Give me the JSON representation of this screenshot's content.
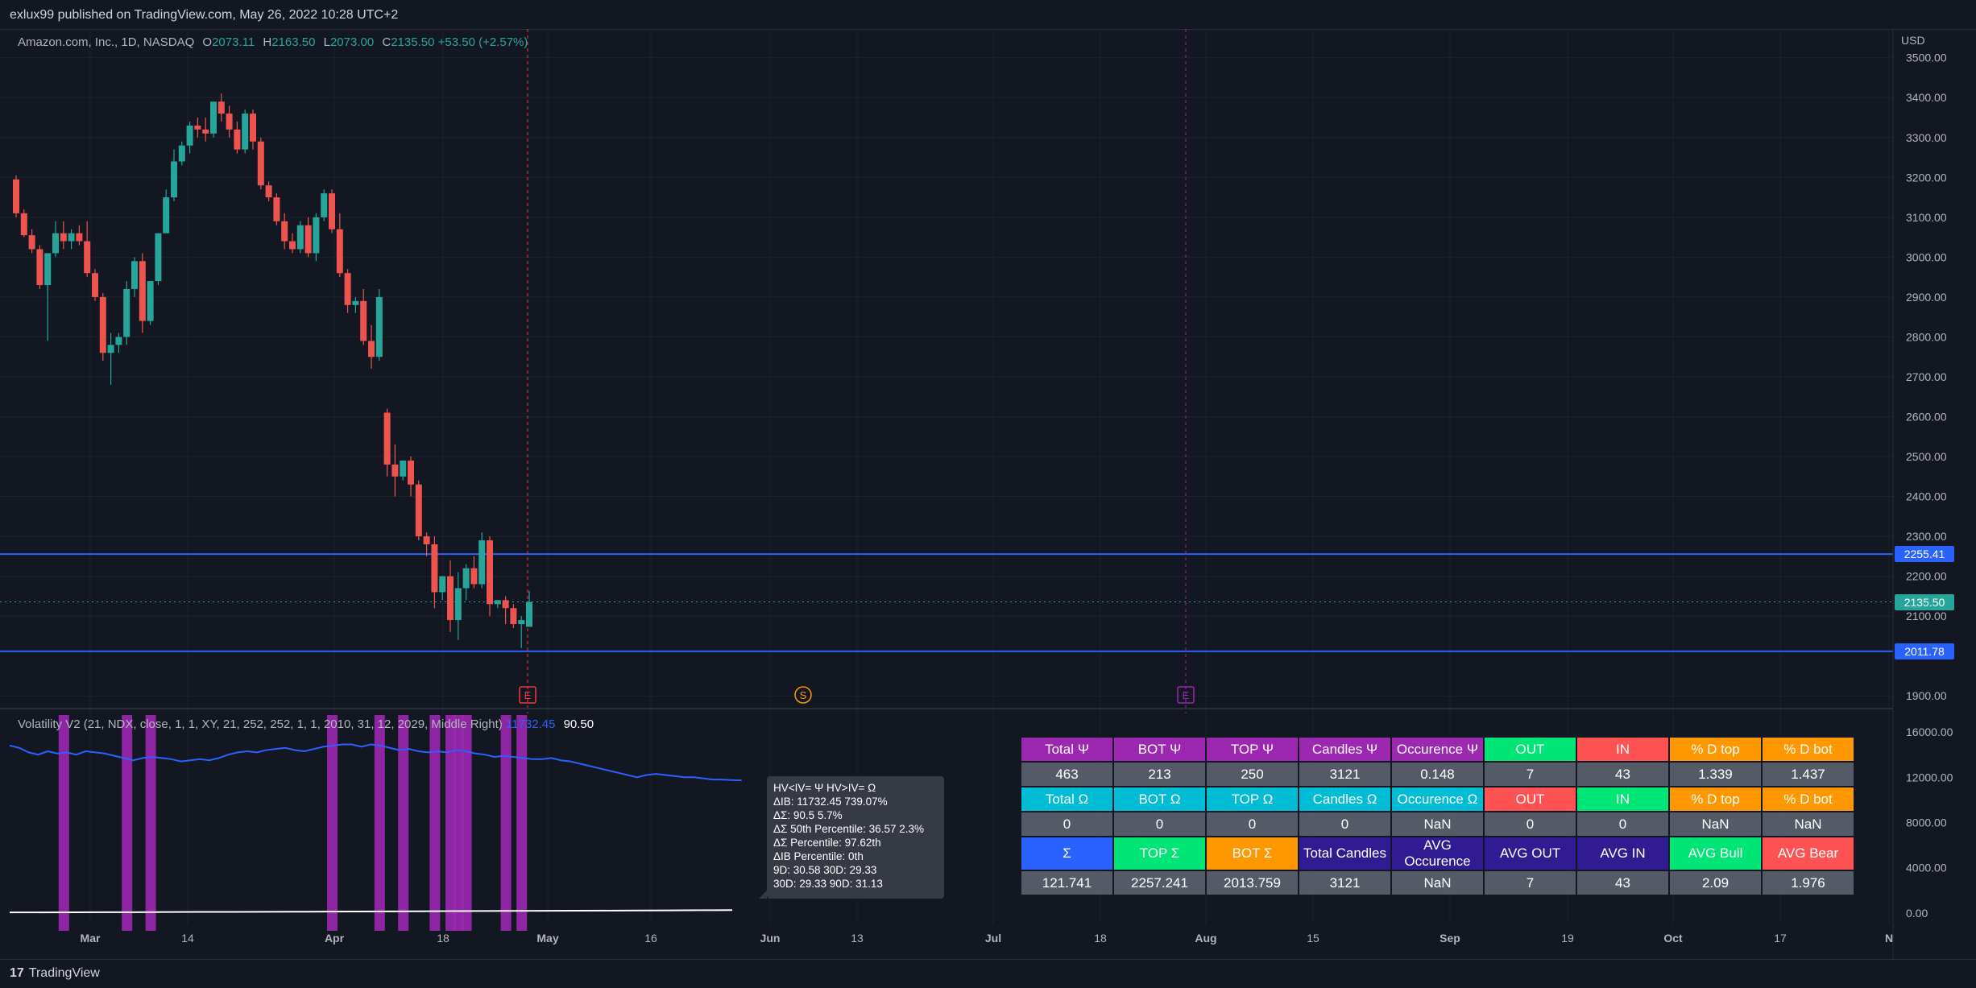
{
  "header": {
    "published": "exlux99 published on TradingView.com, May 26, 2022 10:28 UTC+2"
  },
  "legend": {
    "symbol": "Amazon.com, Inc., 1D, NASDAQ",
    "o_label": "O",
    "o_value": "2073.11",
    "h_label": "H",
    "h_value": "2163.50",
    "l_label": "L",
    "l_value": "2073.00",
    "c_label": "C",
    "c_value": "2135.50",
    "change": "+53.50 (+2.57%)"
  },
  "indicator_legend": {
    "name": "Volatility V2 (21, NDX, close, 1, 1, XY, 21, 252, 252, 1, 1, 2010, 31, 12, 2029, Middle Right)",
    "value1": "11732.45",
    "value2": "90.50"
  },
  "axis": {
    "currency": "USD"
  },
  "price_tags": [
    {
      "label": "2255.41",
      "color": "#2962ff"
    },
    {
      "label": "2135.50",
      "color": "#26a69a"
    },
    {
      "label": "2011.78",
      "color": "#2962ff"
    }
  ],
  "event_markers": [
    {
      "label": "E",
      "color": "#f23645"
    },
    {
      "label": "S",
      "color": "#ff9800"
    },
    {
      "label": "E",
      "color": "#9c27b0"
    }
  ],
  "tooltip": {
    "lines": [
      "HV<IV= Ψ  HV>IV= Ω",
      "ΔIB: 11732.45  739.07%",
      "ΔΣ: 90.5  5.7%",
      "ΔΣ 50th Percentile: 36.57  2.3%",
      "ΔΣ Percentile: 97.62th",
      "ΔIB Percentile: 0th",
      "9D: 30.58  30D: 29.33",
      "30D: 29.33  90D: 31.13"
    ]
  },
  "stats_table": {
    "rows": [
      {
        "type": "header",
        "cells": [
          {
            "t": "Total Ψ",
            "bg": "#9c27b0"
          },
          {
            "t": "BOT Ψ",
            "bg": "#9c27b0"
          },
          {
            "t": "TOP Ψ",
            "bg": "#9c27b0"
          },
          {
            "t": "Candles Ψ",
            "bg": "#9c27b0"
          },
          {
            "t": "Occurence Ψ",
            "bg": "#9c27b0"
          },
          {
            "t": "OUT",
            "bg": "#00e676"
          },
          {
            "t": "IN",
            "bg": "#ff5252"
          },
          {
            "t": "% D top",
            "bg": "#ff9800"
          },
          {
            "t": "% D bot",
            "bg": "#ff9800"
          }
        ]
      },
      {
        "type": "data",
        "cells": [
          {
            "t": "463"
          },
          {
            "t": "213"
          },
          {
            "t": "250"
          },
          {
            "t": "3121"
          },
          {
            "t": "0.148"
          },
          {
            "t": "7"
          },
          {
            "t": "43"
          },
          {
            "t": "1.339"
          },
          {
            "t": "1.437"
          }
        ]
      },
      {
        "type": "header",
        "cells": [
          {
            "t": "Total Ω",
            "bg": "#00bcd4"
          },
          {
            "t": "BOT Ω",
            "bg": "#00bcd4"
          },
          {
            "t": "TOP Ω",
            "bg": "#00bcd4"
          },
          {
            "t": "Candles Ω",
            "bg": "#00bcd4"
          },
          {
            "t": "Occurence Ω",
            "bg": "#00bcd4"
          },
          {
            "t": "OUT",
            "bg": "#ff5252"
          },
          {
            "t": "IN",
            "bg": "#00e676"
          },
          {
            "t": "% D top",
            "bg": "#ff9800"
          },
          {
            "t": "% D bot",
            "bg": "#ff9800"
          }
        ]
      },
      {
        "type": "data",
        "cells": [
          {
            "t": "0"
          },
          {
            "t": "0"
          },
          {
            "t": "0"
          },
          {
            "t": "0"
          },
          {
            "t": "NaN"
          },
          {
            "t": "0"
          },
          {
            "t": "0"
          },
          {
            "t": "NaN"
          },
          {
            "t": "NaN"
          }
        ]
      },
      {
        "type": "header",
        "cells": [
          {
            "t": "Σ",
            "bg": "#2962ff"
          },
          {
            "t": "TOP Σ",
            "bg": "#00e676"
          },
          {
            "t": "BOT Σ",
            "bg": "#ff9800"
          },
          {
            "t": "Total Candles",
            "bg": "#311b92"
          },
          {
            "t": "AVG Occurence",
            "bg": "#311b92"
          },
          {
            "t": "AVG OUT",
            "bg": "#311b92"
          },
          {
            "t": "AVG IN",
            "bg": "#311b92"
          },
          {
            "t": "AVG Bull",
            "bg": "#00e676"
          },
          {
            "t": "AVG Bear",
            "bg": "#ff5252"
          }
        ]
      },
      {
        "type": "data",
        "cells": [
          {
            "t": "121.741"
          },
          {
            "t": "2257.241"
          },
          {
            "t": "2013.759"
          },
          {
            "t": "3121"
          },
          {
            "t": "NaN"
          },
          {
            "t": "7"
          },
          {
            "t": "43"
          },
          {
            "t": "2.09"
          },
          {
            "t": "1.976"
          }
        ]
      }
    ]
  },
  "chart_data": {
    "type": "candlestick",
    "price_axis": {
      "ticks": [
        1900,
        2100,
        2200,
        2300,
        2400,
        2500,
        2600,
        2700,
        2800,
        2900,
        3000,
        3100,
        3200,
        3300,
        3400,
        3500
      ],
      "ylim": [
        1860,
        3560
      ]
    },
    "indicator_axis": {
      "ticks": [
        "0.00",
        "4000.00",
        "8000.00",
        "12000.00",
        "16000.00"
      ],
      "ylim": [
        -1000,
        17500
      ]
    },
    "x_labels": [
      "Mar",
      "14",
      "Apr",
      "18",
      "May",
      "16",
      "Jun",
      "13",
      "Jul",
      "18",
      "Aug",
      "15",
      "Sep",
      "19",
      "Oct",
      "17",
      "N"
    ],
    "candles": [
      [
        3195,
        3205,
        3100,
        3110
      ],
      [
        3110,
        3120,
        3050,
        3055
      ],
      [
        3055,
        3070,
        3010,
        3020
      ],
      [
        3020,
        3030,
        2920,
        2930
      ],
      [
        2930,
        3010,
        2790,
        3010
      ],
      [
        3010,
        3090,
        3000,
        3060
      ],
      [
        3060,
        3090,
        3020,
        3040
      ],
      [
        3040,
        3070,
        3020,
        3060
      ],
      [
        3060,
        3080,
        3030,
        3040
      ],
      [
        3040,
        3090,
        2950,
        2960
      ],
      [
        2960,
        2970,
        2890,
        2900
      ],
      [
        2900,
        2910,
        2740,
        2760
      ],
      [
        2760,
        2810,
        2680,
        2780
      ],
      [
        2780,
        2810,
        2760,
        2800
      ],
      [
        2800,
        2940,
        2780,
        2920
      ],
      [
        2920,
        3000,
        2900,
        2990
      ],
      [
        2990,
        3010,
        2810,
        2840
      ],
      [
        2840,
        2940,
        2830,
        2940
      ],
      [
        2940,
        3060,
        2930,
        3060
      ],
      [
        3060,
        3170,
        3060,
        3150
      ],
      [
        3150,
        3270,
        3140,
        3240
      ],
      [
        3240,
        3290,
        3230,
        3280
      ],
      [
        3280,
        3340,
        3260,
        3330
      ],
      [
        3330,
        3350,
        3300,
        3320
      ],
      [
        3320,
        3350,
        3290,
        3310
      ],
      [
        3310,
        3390,
        3300,
        3390
      ],
      [
        3390,
        3410,
        3340,
        3360
      ],
      [
        3360,
        3380,
        3300,
        3320
      ],
      [
        3320,
        3340,
        3260,
        3270
      ],
      [
        3270,
        3370,
        3260,
        3360
      ],
      [
        3360,
        3370,
        3270,
        3290
      ],
      [
        3290,
        3300,
        3170,
        3180
      ],
      [
        3180,
        3190,
        3140,
        3150
      ],
      [
        3150,
        3160,
        3080,
        3090
      ],
      [
        3090,
        3110,
        3020,
        3040
      ],
      [
        3040,
        3060,
        3010,
        3020
      ],
      [
        3020,
        3090,
        3010,
        3080
      ],
      [
        3080,
        3100,
        3000,
        3010
      ],
      [
        3010,
        3110,
        2990,
        3100
      ],
      [
        3100,
        3170,
        3090,
        3160
      ],
      [
        3160,
        3170,
        3060,
        3070
      ],
      [
        3070,
        3110,
        2950,
        2960
      ],
      [
        2960,
        2970,
        2860,
        2880
      ],
      [
        2880,
        2900,
        2860,
        2890
      ],
      [
        2890,
        2920,
        2780,
        2790
      ],
      [
        2790,
        2830,
        2720,
        2750
      ],
      [
        2750,
        2920,
        2740,
        2900
      ],
      [
        2610,
        2620,
        2450,
        2480
      ],
      [
        2480,
        2530,
        2400,
        2450
      ],
      [
        2450,
        2490,
        2440,
        2490
      ],
      [
        2490,
        2500,
        2400,
        2430
      ],
      [
        2430,
        2440,
        2290,
        2300
      ],
      [
        2300,
        2310,
        2250,
        2280
      ],
      [
        2280,
        2300,
        2120,
        2160
      ],
      [
        2160,
        2200,
        2140,
        2200
      ],
      [
        2200,
        2240,
        2060,
        2090
      ],
      [
        2090,
        2210,
        2040,
        2170
      ],
      [
        2170,
        2230,
        2140,
        2220
      ],
      [
        2220,
        2250,
        2170,
        2180
      ],
      [
        2180,
        2310,
        2170,
        2290
      ],
      [
        2290,
        2300,
        2100,
        2130
      ],
      [
        2130,
        2140,
        2120,
        2140
      ],
      [
        2140,
        2150,
        2080,
        2120
      ],
      [
        2120,
        2130,
        2070,
        2080
      ],
      [
        2080,
        2100,
        2020,
        2090
      ],
      [
        2073.11,
        2163.5,
        2073,
        2135.5
      ]
    ],
    "levels": [
      2255.41,
      2135.5,
      2011.78
    ],
    "indicator_series": [
      14800,
      14600,
      14200,
      14000,
      14300,
      14100,
      14200,
      14000,
      14300,
      14200,
      14100,
      13900,
      13700,
      13500,
      13700,
      13800,
      13700,
      13600,
      13400,
      13500,
      13600,
      13500,
      13700,
      14000,
      14200,
      14300,
      14200,
      14400,
      14500,
      14600,
      14400,
      14300,
      14500,
      14700,
      14800,
      14900,
      14900,
      14700,
      14900,
      14800,
      14600,
      14400,
      14500,
      14300,
      14200,
      14300,
      14200,
      14400,
      14300,
      14100,
      14000,
      13800,
      13900,
      13800,
      13700,
      13600,
      13600,
      13700,
      13500,
      13400,
      13200,
      13000,
      12800,
      12600,
      12400,
      12200,
      12000,
      12200,
      12300,
      12200,
      12100,
      12000,
      12000,
      11900,
      11800,
      11800,
      11750,
      11732
    ],
    "baseline_series": [
      60,
      60,
      70,
      80,
      80,
      90,
      100,
      100,
      110,
      120,
      130,
      140,
      150,
      160,
      170,
      180,
      190,
      200,
      210,
      220,
      230,
      240,
      250,
      260
    ],
    "highlight_bars": [
      6,
      14,
      17,
      40,
      46,
      49,
      53,
      55,
      56,
      57,
      62,
      64
    ]
  }
}
